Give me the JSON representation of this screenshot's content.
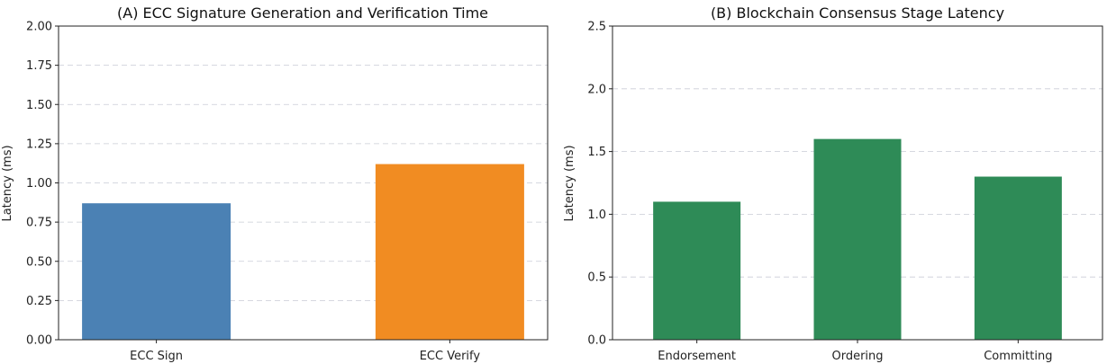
{
  "chart_data": [
    {
      "type": "bar",
      "title": "(A) ECC Signature Generation and Verification Time",
      "xlabel": "",
      "ylabel": "Latency (ms)",
      "categories": [
        "ECC Sign",
        "ECC Verify"
      ],
      "values": [
        0.87,
        1.12
      ],
      "colors": [
        "#4b81b4",
        "#f18c22"
      ],
      "ylim": [
        0,
        2.0
      ],
      "yticks": [
        "0.00",
        "0.25",
        "0.50",
        "0.75",
        "1.00",
        "1.25",
        "1.50",
        "1.75",
        "2.00"
      ],
      "grid": "y-dashed"
    },
    {
      "type": "bar",
      "title": "(B) Blockchain Consensus Stage Latency",
      "xlabel": "",
      "ylabel": "Latency (ms)",
      "categories": [
        "Endorsement",
        "Ordering",
        "Committing"
      ],
      "values": [
        1.1,
        1.6,
        1.3
      ],
      "colors": [
        "#2e8b57",
        "#2e8b57",
        "#2e8b57"
      ],
      "ylim": [
        0,
        2.5
      ],
      "yticks": [
        "0.0",
        "0.5",
        "1.0",
        "1.5",
        "2.0",
        "2.5"
      ],
      "grid": "y-dashed"
    }
  ]
}
